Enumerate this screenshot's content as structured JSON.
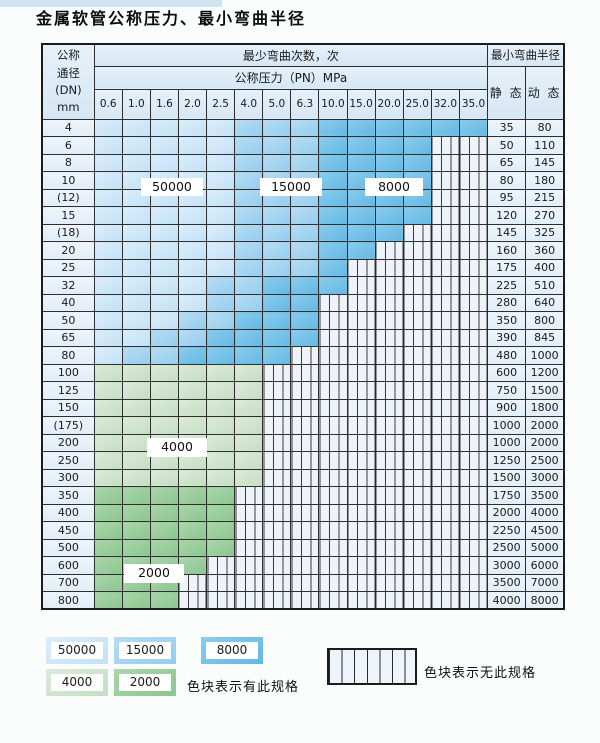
{
  "page": {
    "title": "金属软管公称压力、最小弯曲半径"
  },
  "table": {
    "dn_header_lines": [
      "公称",
      "通径",
      "(DN)",
      "mm"
    ],
    "cycles_header": "最少弯曲次数，次",
    "pressure_header": "公称压力（PN）MPa",
    "radius_header": "最小弯曲半径",
    "static_label": "静 态",
    "dynamic_label": "动 态",
    "pressures": [
      "0.6",
      "1.0",
      "1.6",
      "2.0",
      "2.5",
      "4.0",
      "5.0",
      "6.3",
      "10.0",
      "15.0",
      "20.0",
      "25.0",
      "32.0",
      "35.0"
    ],
    "cell_code_meaning": {
      "b1": "50000次",
      "b2": "15000次",
      "b3": "8000次",
      "g1": "4000次",
      "g2": "2000次",
      "x": "无此规格"
    },
    "rows": [
      {
        "dn": "4",
        "cells": [
          "b1",
          "b1",
          "b1",
          "b1",
          "b1",
          "b2",
          "b2",
          "b2",
          "b3",
          "b3",
          "b3",
          "b3",
          "b3",
          "b3"
        ],
        "static": "35",
        "dynamic": "80"
      },
      {
        "dn": "6",
        "cells": [
          "b1",
          "b1",
          "b1",
          "b1",
          "b1",
          "b2",
          "b2",
          "b2",
          "b3",
          "b3",
          "b3",
          "b3",
          "x",
          "x"
        ],
        "static": "50",
        "dynamic": "110"
      },
      {
        "dn": "8",
        "cells": [
          "b1",
          "b1",
          "b1",
          "b1",
          "b1",
          "b2",
          "b2",
          "b2",
          "b3",
          "b3",
          "b3",
          "b3",
          "x",
          "x"
        ],
        "static": "65",
        "dynamic": "145"
      },
      {
        "dn": "10",
        "cells": [
          "b1",
          "b1",
          "b1",
          "b1",
          "b1",
          "b2",
          "b2",
          "b2",
          "b3",
          "b3",
          "b3",
          "b3",
          "x",
          "x"
        ],
        "static": "80",
        "dynamic": "180"
      },
      {
        "dn": "(12)",
        "cells": [
          "b1",
          "b1",
          "b1",
          "b1",
          "b1",
          "b2",
          "b2",
          "b2",
          "b3",
          "b3",
          "b3",
          "b3",
          "x",
          "x"
        ],
        "static": "95",
        "dynamic": "215"
      },
      {
        "dn": "15",
        "cells": [
          "b1",
          "b1",
          "b1",
          "b1",
          "b1",
          "b2",
          "b2",
          "b2",
          "b3",
          "b3",
          "b3",
          "b3",
          "x",
          "x"
        ],
        "static": "120",
        "dynamic": "270"
      },
      {
        "dn": "(18)",
        "cells": [
          "b1",
          "b1",
          "b1",
          "b1",
          "b1",
          "b2",
          "b2",
          "b2",
          "b3",
          "b3",
          "b3",
          "x",
          "x",
          "x"
        ],
        "static": "145",
        "dynamic": "325"
      },
      {
        "dn": "20",
        "cells": [
          "b1",
          "b1",
          "b1",
          "b1",
          "b1",
          "b2",
          "b2",
          "b2",
          "b3",
          "b3",
          "x",
          "x",
          "x",
          "x"
        ],
        "static": "160",
        "dynamic": "360"
      },
      {
        "dn": "25",
        "cells": [
          "b1",
          "b1",
          "b1",
          "b1",
          "b1",
          "b2",
          "b2",
          "b2",
          "b3",
          "x",
          "x",
          "x",
          "x",
          "x"
        ],
        "static": "175",
        "dynamic": "400"
      },
      {
        "dn": "32",
        "cells": [
          "b1",
          "b1",
          "b1",
          "b1",
          "b2",
          "b2",
          "b3",
          "b3",
          "b3",
          "x",
          "x",
          "x",
          "x",
          "x"
        ],
        "static": "225",
        "dynamic": "510"
      },
      {
        "dn": "40",
        "cells": [
          "b1",
          "b1",
          "b1",
          "b1",
          "b2",
          "b2",
          "b3",
          "b3",
          "x",
          "x",
          "x",
          "x",
          "x",
          "x"
        ],
        "static": "280",
        "dynamic": "640"
      },
      {
        "dn": "50",
        "cells": [
          "b1",
          "b1",
          "b1",
          "b2",
          "b2",
          "b3",
          "b3",
          "b3",
          "x",
          "x",
          "x",
          "x",
          "x",
          "x"
        ],
        "static": "350",
        "dynamic": "800"
      },
      {
        "dn": "65",
        "cells": [
          "b1",
          "b1",
          "b2",
          "b2",
          "b3",
          "b3",
          "b3",
          "b3",
          "x",
          "x",
          "x",
          "x",
          "x",
          "x"
        ],
        "static": "390",
        "dynamic": "845"
      },
      {
        "dn": "80",
        "cells": [
          "b1",
          "b2",
          "b2",
          "b3",
          "b3",
          "b3",
          "b3",
          "x",
          "x",
          "x",
          "x",
          "x",
          "x",
          "x"
        ],
        "static": "480",
        "dynamic": "1000"
      },
      {
        "dn": "100",
        "cells": [
          "g1",
          "g1",
          "g1",
          "g1",
          "g1",
          "g1",
          "x",
          "x",
          "x",
          "x",
          "x",
          "x",
          "x",
          "x"
        ],
        "static": "600",
        "dynamic": "1200"
      },
      {
        "dn": "125",
        "cells": [
          "g1",
          "g1",
          "g1",
          "g1",
          "g1",
          "g1",
          "x",
          "x",
          "x",
          "x",
          "x",
          "x",
          "x",
          "x"
        ],
        "static": "750",
        "dynamic": "1500"
      },
      {
        "dn": "150",
        "cells": [
          "g1",
          "g1",
          "g1",
          "g1",
          "g1",
          "g1",
          "x",
          "x",
          "x",
          "x",
          "x",
          "x",
          "x",
          "x"
        ],
        "static": "900",
        "dynamic": "1800"
      },
      {
        "dn": "(175)",
        "cells": [
          "g1",
          "g1",
          "g1",
          "g1",
          "g1",
          "g1",
          "x",
          "x",
          "x",
          "x",
          "x",
          "x",
          "x",
          "x"
        ],
        "static": "1000",
        "dynamic": "2000"
      },
      {
        "dn": "200",
        "cells": [
          "g1",
          "g1",
          "g1",
          "g1",
          "g1",
          "g1",
          "x",
          "x",
          "x",
          "x",
          "x",
          "x",
          "x",
          "x"
        ],
        "static": "1000",
        "dynamic": "2000"
      },
      {
        "dn": "250",
        "cells": [
          "g1",
          "g1",
          "g1",
          "g1",
          "g1",
          "g1",
          "x",
          "x",
          "x",
          "x",
          "x",
          "x",
          "x",
          "x"
        ],
        "static": "1250",
        "dynamic": "2500"
      },
      {
        "dn": "300",
        "cells": [
          "g1",
          "g1",
          "g1",
          "g1",
          "g1",
          "g1",
          "x",
          "x",
          "x",
          "x",
          "x",
          "x",
          "x",
          "x"
        ],
        "static": "1500",
        "dynamic": "3000"
      },
      {
        "dn": "350",
        "cells": [
          "g2",
          "g2",
          "g2",
          "g2",
          "g2",
          "x",
          "x",
          "x",
          "x",
          "x",
          "x",
          "x",
          "x",
          "x"
        ],
        "static": "1750",
        "dynamic": "3500"
      },
      {
        "dn": "400",
        "cells": [
          "g2",
          "g2",
          "g2",
          "g2",
          "g2",
          "x",
          "x",
          "x",
          "x",
          "x",
          "x",
          "x",
          "x",
          "x"
        ],
        "static": "2000",
        "dynamic": "4000"
      },
      {
        "dn": "450",
        "cells": [
          "g2",
          "g2",
          "g2",
          "g2",
          "g2",
          "x",
          "x",
          "x",
          "x",
          "x",
          "x",
          "x",
          "x",
          "x"
        ],
        "static": "2250",
        "dynamic": "4500"
      },
      {
        "dn": "500",
        "cells": [
          "g2",
          "g2",
          "g2",
          "g2",
          "g2",
          "x",
          "x",
          "x",
          "x",
          "x",
          "x",
          "x",
          "x",
          "x"
        ],
        "static": "2500",
        "dynamic": "5000"
      },
      {
        "dn": "600",
        "cells": [
          "g2",
          "g2",
          "g2",
          "g2",
          "x",
          "x",
          "x",
          "x",
          "x",
          "x",
          "x",
          "x",
          "x",
          "x"
        ],
        "static": "3000",
        "dynamic": "6000"
      },
      {
        "dn": "700",
        "cells": [
          "g2",
          "g2",
          "g2",
          "x",
          "x",
          "x",
          "x",
          "x",
          "x",
          "x",
          "x",
          "x",
          "x",
          "x"
        ],
        "static": "3500",
        "dynamic": "7000"
      },
      {
        "dn": "800",
        "cells": [
          "g2",
          "g2",
          "g2",
          "x",
          "x",
          "x",
          "x",
          "x",
          "x",
          "x",
          "x",
          "x",
          "x",
          "x"
        ],
        "static": "4000",
        "dynamic": "8000"
      }
    ]
  },
  "overlay_labels": [
    {
      "text": "50000"
    },
    {
      "text": "15000"
    },
    {
      "text": "8000"
    },
    {
      "text": "4000"
    },
    {
      "text": "2000"
    }
  ],
  "legend": {
    "items": [
      {
        "value": "50000",
        "color": "b1"
      },
      {
        "value": "15000",
        "color": "b2"
      },
      {
        "value": "8000",
        "color": "b3"
      },
      {
        "value": "4000",
        "color": "g1"
      },
      {
        "value": "2000",
        "color": "g2"
      }
    ],
    "has_spec_text": "色块表示有此规格",
    "no_spec_text": "色块表示无此规格"
  },
  "colors": {
    "blue_50000": "#c9e4f6",
    "blue_15000": "#a0d2f0",
    "blue_8000": "#70bce6",
    "green_4000": "#cee3cb",
    "green_2000": "#99cc9c",
    "hatch_bg": "#edf3f8",
    "header_bg": "#dcebf5",
    "border": "#2e2e2e"
  }
}
